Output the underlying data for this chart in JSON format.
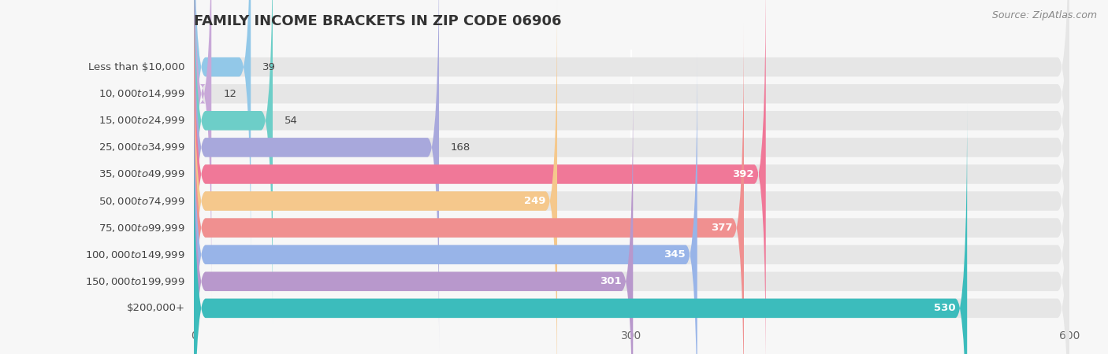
{
  "title": "FAMILY INCOME BRACKETS IN ZIP CODE 06906",
  "source": "Source: ZipAtlas.com",
  "categories": [
    "Less than $10,000",
    "$10,000 to $14,999",
    "$15,000 to $24,999",
    "$25,000 to $34,999",
    "$35,000 to $49,999",
    "$50,000 to $74,999",
    "$75,000 to $99,999",
    "$100,000 to $149,999",
    "$150,000 to $199,999",
    "$200,000+"
  ],
  "values": [
    39,
    12,
    54,
    168,
    392,
    249,
    377,
    345,
    301,
    530
  ],
  "bar_colors": [
    "#92C8E8",
    "#C8A8D8",
    "#6DCEC8",
    "#A8A8DC",
    "#F07898",
    "#F5C88C",
    "#F09090",
    "#98B4E8",
    "#B898CC",
    "#3CBCBC"
  ],
  "xlim": [
    0,
    600
  ],
  "xticks": [
    0,
    300,
    600
  ],
  "background_color": "#f7f7f7",
  "bar_bg_color": "#e6e6e6",
  "title_fontsize": 13,
  "label_fontsize": 9.5,
  "value_fontsize": 9.5,
  "value_threshold": 200
}
